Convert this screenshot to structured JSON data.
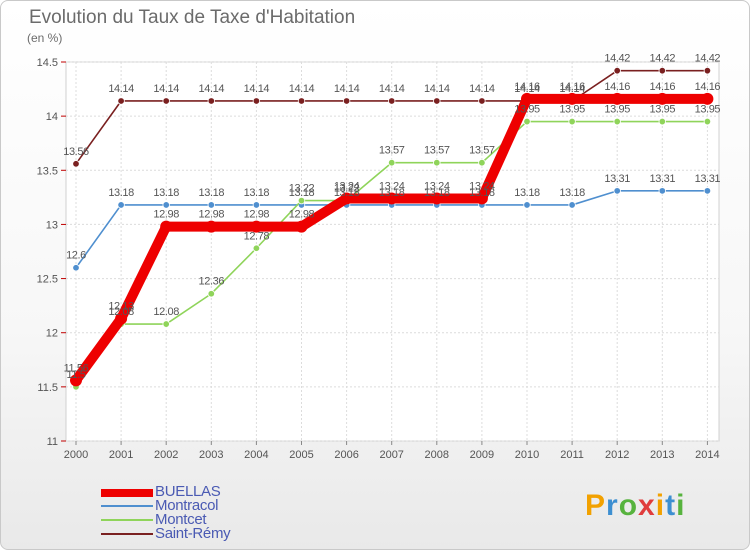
{
  "title": "Evolution du Taux de Taxe d'Habitation",
  "subtitle": "(en %)",
  "brand": {
    "letters": [
      "P",
      "r",
      "o",
      "x",
      "i",
      "t",
      "i"
    ],
    "colors": [
      "#f2a100",
      "#3d8fd1",
      "#57b33e",
      "#e03c3c",
      "#f2a100",
      "#3d8fd1",
      "#57b33e"
    ]
  },
  "chart_data": {
    "type": "line",
    "title": "Evolution du Taux de Taxe d'Habitation",
    "ylabel": "(en %)",
    "xlabel": "",
    "x": [
      "2000",
      "2001",
      "2002",
      "2003",
      "2004",
      "2005",
      "2006",
      "2007",
      "2008",
      "2009",
      "2010",
      "2011",
      "2012",
      "2013",
      "2014"
    ],
    "ylim": [
      11,
      14.5
    ],
    "yticks": [
      "11",
      "11.5",
      "12",
      "12.5",
      "13",
      "13.5",
      "14",
      "14.5"
    ],
    "grid": true,
    "legend_position": "bottom-left",
    "series": [
      {
        "name": "BUELLAS",
        "color": "#ee0000",
        "values": [
          11.56,
          12.13,
          12.98,
          12.98,
          12.98,
          12.98,
          13.24,
          13.24,
          13.24,
          13.24,
          14.16,
          14.16,
          14.16,
          14.16,
          14.16
        ],
        "labels": [
          "11.56",
          "12.13",
          "12.98",
          "12.98",
          "12.98",
          "12.98",
          "13.24",
          "13.24",
          "13.24",
          "13.24",
          "14.16",
          "14.16",
          "14.16",
          "14.16",
          "14.16"
        ]
      },
      {
        "name": "Montracol",
        "color": "#4f8fcf",
        "values": [
          12.6,
          13.18,
          13.18,
          13.18,
          13.18,
          13.18,
          13.18,
          13.18,
          13.18,
          13.18,
          13.18,
          13.18,
          13.31,
          13.31,
          13.31
        ],
        "labels": [
          "12.6",
          "13.18",
          "13.18",
          "13.18",
          "13.18",
          "13.18",
          "13.18",
          "13.18",
          "13.18",
          "13.18",
          "13.18",
          "13.18",
          "13.31",
          "13.31",
          "13.31"
        ]
      },
      {
        "name": "Montcet",
        "color": "#8fd45a",
        "values": [
          11.5,
          12.08,
          12.08,
          12.36,
          12.78,
          13.22,
          13.22,
          13.57,
          13.57,
          13.57,
          13.95,
          13.95,
          13.95,
          13.95,
          13.95
        ],
        "labels": [
          "11.5",
          "12.08",
          "12.08",
          "12.36",
          "12.78",
          "13.22",
          "13.22",
          "13.57",
          "13.57",
          "13.57",
          "13.95",
          "13.95",
          "13.95",
          "13.95",
          "13.95"
        ]
      },
      {
        "name": "Saint-Rémy",
        "color": "#7a2020",
        "values": [
          13.56,
          14.14,
          14.14,
          14.14,
          14.14,
          14.14,
          14.14,
          14.14,
          14.14,
          14.14,
          14.14,
          14.14,
          14.42,
          14.42,
          14.42
        ],
        "labels": [
          "13.56",
          "14.14",
          "14.14",
          "14.14",
          "14.14",
          "14.14",
          "14.14",
          "14.14",
          "14.14",
          "14.14",
          "14.14",
          "14.14",
          "14.42",
          "14.42",
          "14.42"
        ]
      }
    ]
  }
}
